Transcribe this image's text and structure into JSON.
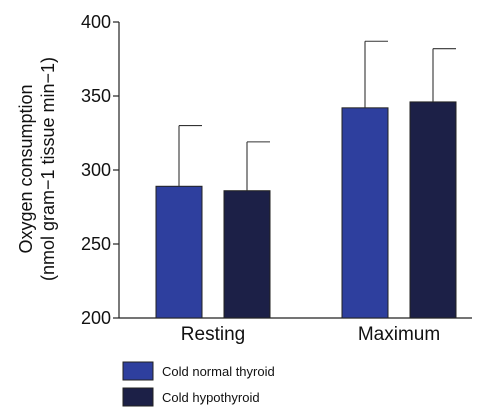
{
  "chart_data": {
    "type": "bar",
    "title": "",
    "xlabel": "",
    "ylabel_line1": "Oxygen consumption",
    "ylabel_line2": "(nmol gram−1 tissue min−1)",
    "categories": [
      "Resting",
      "Maximum"
    ],
    "ylim": [
      200,
      400
    ],
    "yticks": [
      200,
      250,
      300,
      350,
      400
    ],
    "series": [
      {
        "name": "Cold normal thyroid",
        "color": "#2e3f9e",
        "values": [
          289,
          342
        ],
        "error": [
          41,
          45
        ]
      },
      {
        "name": "Cold hypothyroid",
        "color": "#1c2047",
        "values": [
          286,
          346
        ],
        "error": [
          33,
          36
        ]
      }
    ],
    "error_bars": "upper",
    "grid": false,
    "legend_position": "bottom-left"
  }
}
